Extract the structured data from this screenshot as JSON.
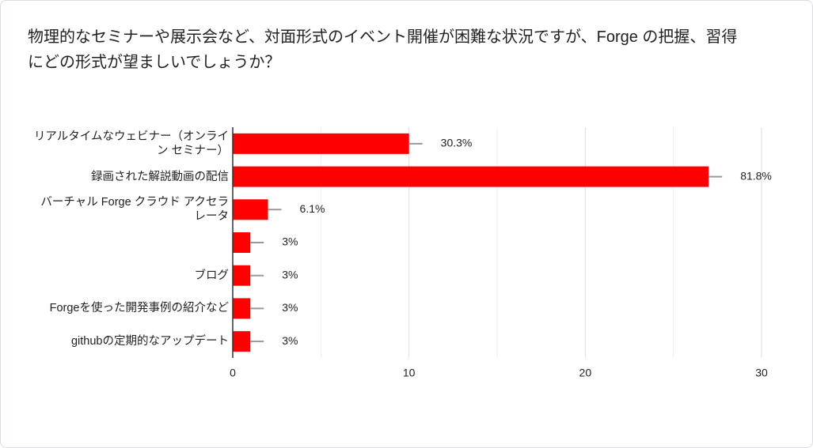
{
  "chart_data": {
    "type": "bar",
    "orientation": "horizontal",
    "title": "物理的なセミナーや展示会など、対面形式のイベント開催が困難な状況ですが、Forge の把握、習得にどの形式が望ましいでしょうか？",
    "categories": [
      "リアルタイムなウェビナー（オンライン セミナー）",
      "録画された解説動画の配信",
      "バーチャル Forge クラウド アクセラレータ",
      null,
      "ブログ",
      "Forgeを使った開発事例の紹介など",
      "githubの定期的なアップデート"
    ],
    "values": [
      10,
      27,
      2,
      1,
      1,
      1,
      1
    ],
    "value_labels": [
      "30.3%",
      "81.8%",
      "6.1%",
      "3%",
      "3%",
      "3%",
      "3%"
    ],
    "color": "#ff0000",
    "xlim": [
      0,
      30
    ],
    "xticks": [
      0,
      10,
      20,
      30
    ],
    "minor_gridlines": [
      5,
      15,
      25
    ],
    "grid": true
  }
}
